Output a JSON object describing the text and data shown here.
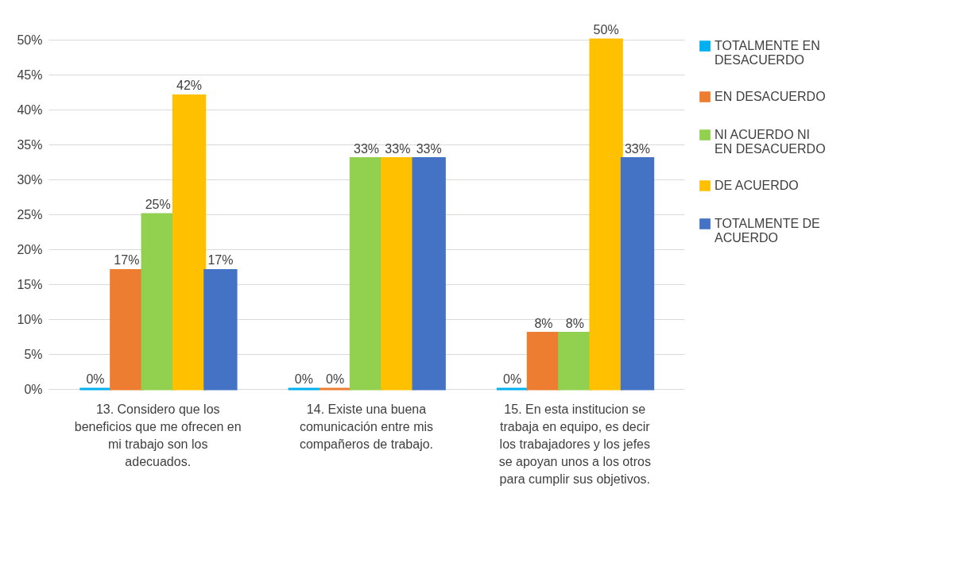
{
  "chart_data": {
    "type": "bar",
    "categories": [
      "13. Considero que los beneficios que me ofrecen en mi trabajo son los adecuados.",
      "14. Existe una buena comunicación entre mis compañeros de trabajo.",
      "15. En esta institucion se trabaja en equipo, es decir los trabajadores y los jefes se apoyan unos a los otros para cumplir sus objetivos."
    ],
    "series": [
      {
        "name": "TOTALMENTE EN DESACUERDO",
        "color": "#00b0f0",
        "values": [
          0,
          0,
          0
        ],
        "value_labels": [
          "0%",
          "0%",
          "0%"
        ]
      },
      {
        "name": "EN DESACUERDO",
        "color": "#ed7d31",
        "values": [
          17,
          0,
          8
        ],
        "value_labels": [
          "17%",
          "0%",
          "8%"
        ]
      },
      {
        "name": "NI ACUERDO NI EN DESACUERDO",
        "color": "#92d050",
        "values": [
          25,
          33,
          8
        ],
        "value_labels": [
          "25%",
          "33%",
          "8%"
        ]
      },
      {
        "name": "DE ACUERDO",
        "color": "#ffc000",
        "values": [
          42,
          33,
          50
        ],
        "value_labels": [
          "42%",
          "33%",
          "50%"
        ]
      },
      {
        "name": "TOTALMENTE DE ACUERDO",
        "color": "#4472c4",
        "values": [
          17,
          33,
          33
        ],
        "value_labels": [
          "17%",
          "33%",
          "33%"
        ]
      }
    ],
    "ylim": [
      0,
      50
    ],
    "yticks": [
      {
        "value": 0,
        "label": "0%"
      },
      {
        "value": 5,
        "label": "5%"
      },
      {
        "value": 10,
        "label": "10%"
      },
      {
        "value": 15,
        "label": "15%"
      },
      {
        "value": 20,
        "label": "20%"
      },
      {
        "value": 25,
        "label": "25%"
      },
      {
        "value": 30,
        "label": "30%"
      },
      {
        "value": 35,
        "label": "35%"
      },
      {
        "value": 40,
        "label": "40%"
      },
      {
        "value": 45,
        "label": "45%"
      },
      {
        "value": 50,
        "label": "50%"
      }
    ],
    "grid": "y",
    "legend": "right"
  }
}
